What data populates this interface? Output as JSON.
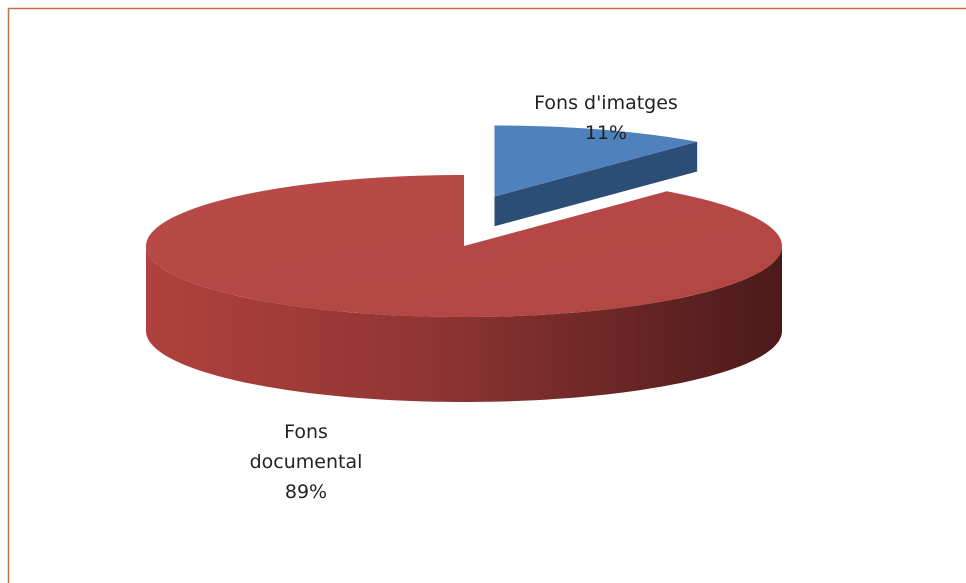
{
  "chart_data": {
    "type": "pie",
    "categories": [
      "Fons d'imatges",
      "Fons documental"
    ],
    "values": [
      11,
      89
    ],
    "value_labels": [
      "11%",
      "89%"
    ],
    "colors": [
      "#4f81bd",
      "#c0504d"
    ]
  }
}
